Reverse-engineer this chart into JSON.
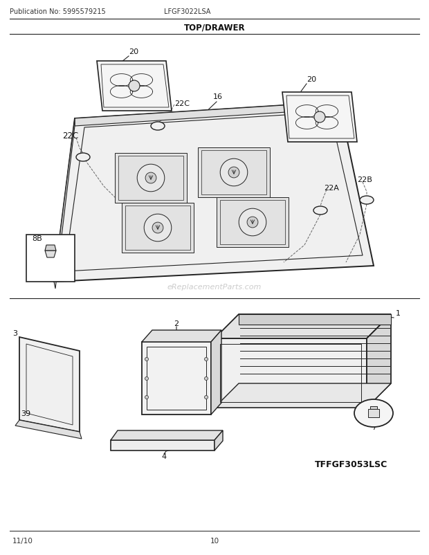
{
  "title": "TOP/DRAWER",
  "pub_no": "Publication No: 5995579215",
  "model": "LFGF3022LSA",
  "footer_left": "11/10",
  "footer_center": "10",
  "watermark": "eReplacementParts.com",
  "tffgf_label": "TFFGF3053LSC",
  "bg_color": "#ffffff",
  "lc": "#222222",
  "llc": "#666666"
}
